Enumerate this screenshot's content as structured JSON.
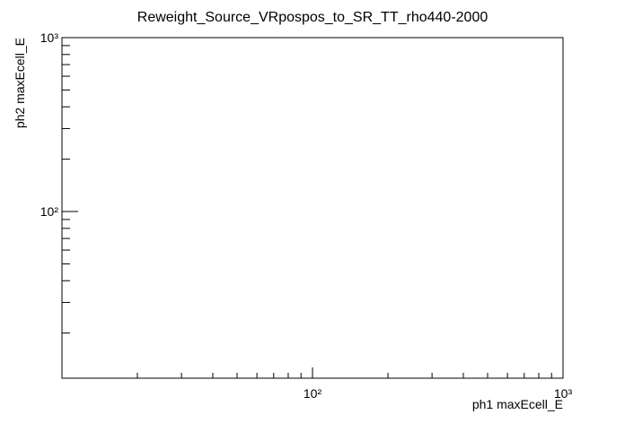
{
  "chart_data": {
    "type": "scatter",
    "title": "Reweight_Source_VRpospos_to_SR_TT_rho440-2000",
    "x_label": "ph1 maxEcell_E",
    "y_label": "ph2 maxEcell_E",
    "xscale": "log",
    "yscale": "log",
    "xlim": [
      10,
      1000
    ],
    "ylim": [
      11,
      1000
    ],
    "xticks": [
      {
        "value": 100,
        "label": "10²"
      },
      {
        "value": 1000,
        "label": "10³"
      }
    ],
    "yticks": [
      {
        "value": 100,
        "label": "10²"
      },
      {
        "value": 1000,
        "label": "10³"
      }
    ],
    "xminorticks": [
      20,
      30,
      40,
      50,
      60,
      70,
      80,
      90,
      200,
      300,
      400,
      500,
      600,
      700,
      800,
      900
    ],
    "yminorticks": [
      20,
      30,
      40,
      50,
      60,
      70,
      80,
      90,
      200,
      300,
      400,
      500,
      600,
      700,
      800,
      900
    ],
    "series": []
  }
}
